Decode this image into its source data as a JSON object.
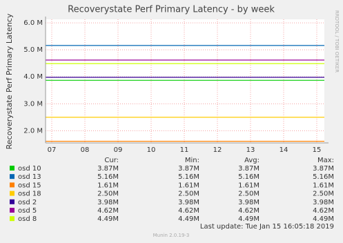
{
  "chart_data": {
    "type": "line",
    "title": "Recoverystate Perf Primary Latency - by week",
    "y_label": "Recoverystate Perf Primary Latency",
    "side_text": "RRDTOOL / TOBI OETIKER",
    "xticks": [
      "07",
      "08",
      "09",
      "10",
      "11",
      "12",
      "13",
      "14",
      "15"
    ],
    "ylim": [
      1550000,
      6130000
    ],
    "yticks": [
      {
        "value": 2000000,
        "label": "2.0 M"
      },
      {
        "value": 3000000,
        "label": "3.0 M"
      },
      {
        "value": 4000000,
        "label": "4.0 M"
      },
      {
        "value": 5000000,
        "label": "5.0 M"
      },
      {
        "value": 6000000,
        "label": "6.0 M"
      }
    ],
    "grid": true,
    "stat_headers": [
      "Cur:",
      "Min:",
      "Avg:",
      "Max:"
    ],
    "series": [
      {
        "name": "osd 10",
        "color": "#00cc00",
        "values": [
          3870000,
          3870000,
          3870000,
          3870000
        ],
        "value_labels": [
          "3.87M",
          "3.87M",
          "3.87M",
          "3.87M"
        ]
      },
      {
        "name": "osd 13",
        "color": "#0066b3",
        "values": [
          5160000,
          5160000,
          5160000,
          5160000
        ],
        "value_labels": [
          "5.16M",
          "5.16M",
          "5.16M",
          "5.16M"
        ]
      },
      {
        "name": "osd 15",
        "color": "#ff8000",
        "values": [
          1610000,
          1610000,
          1610000,
          1610000
        ],
        "value_labels": [
          "1.61M",
          "1.61M",
          "1.61M",
          "1.61M"
        ]
      },
      {
        "name": "osd 18",
        "color": "#ffcc00",
        "values": [
          2500000,
          2500000,
          2500000,
          2500000
        ],
        "value_labels": [
          "2.50M",
          "2.50M",
          "2.50M",
          "2.50M"
        ]
      },
      {
        "name": "osd 2",
        "color": "#330099",
        "values": [
          3980000,
          3980000,
          3980000,
          3980000
        ],
        "value_labels": [
          "3.98M",
          "3.98M",
          "3.98M",
          "3.98M"
        ]
      },
      {
        "name": "osd 5",
        "color": "#990099",
        "values": [
          4620000,
          4620000,
          4620000,
          4620000
        ],
        "value_labels": [
          "4.62M",
          "4.62M",
          "4.62M",
          "4.62M"
        ]
      },
      {
        "name": "osd 8",
        "color": "#ccff00",
        "values": [
          4490000,
          4490000,
          4490000,
          4490000
        ],
        "value_labels": [
          "4.49M",
          "4.49M",
          "4.49M",
          "4.49M"
        ]
      }
    ],
    "last_update": "Last update:  Tue Jan 15 16:05:18 2019",
    "footer": "Munin 2.0.19-3"
  }
}
